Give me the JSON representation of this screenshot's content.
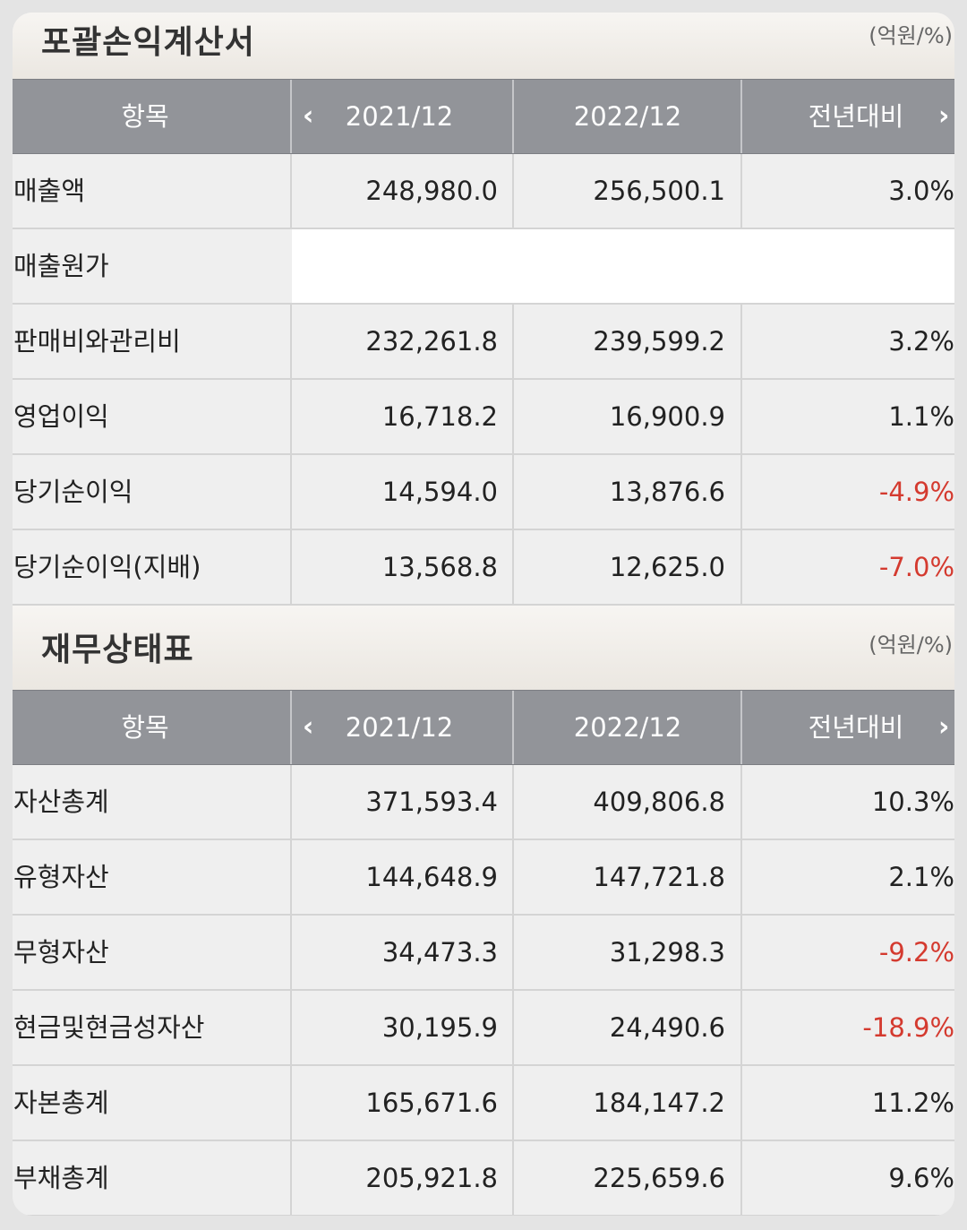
{
  "income_statement": {
    "title": "포괄손익계산서",
    "unit": "(억원/%)",
    "headers": [
      "항목",
      "2021/12",
      "2022/12",
      "전년대비"
    ],
    "rows": [
      {
        "label": "매출액",
        "v2021": "248,980.0",
        "v2022": "256,500.1",
        "yoy": "3.0%"
      },
      {
        "label": "매출원가",
        "v2021": "",
        "v2022": "",
        "yoy": ""
      },
      {
        "label": "판매비와관리비",
        "v2021": "232,261.8",
        "v2022": "239,599.2",
        "yoy": "3.2%"
      },
      {
        "label": "영업이익",
        "v2021": "16,718.2",
        "v2022": "16,900.9",
        "yoy": "1.1%"
      },
      {
        "label": "당기순이익",
        "v2021": "14,594.0",
        "v2022": "13,876.6",
        "yoy": "-4.9%"
      },
      {
        "label": "당기순이익(지배)",
        "v2021": "13,568.8",
        "v2022": "12,625.0",
        "yoy": "-7.0%"
      }
    ]
  },
  "balance_sheet": {
    "title": "재무상태표",
    "unit": "(억원/%)",
    "headers": [
      "항목",
      "2021/12",
      "2022/12",
      "전년대비"
    ],
    "rows": [
      {
        "label": "자산총계",
        "v2021": "371,593.4",
        "v2022": "409,806.8",
        "yoy": "10.3%"
      },
      {
        "label": "유형자산",
        "v2021": "144,648.9",
        "v2022": "147,721.8",
        "yoy": "2.1%"
      },
      {
        "label": "무형자산",
        "v2021": "34,473.3",
        "v2022": "31,298.3",
        "yoy": "-9.2%"
      },
      {
        "label": "현금및현금성자산",
        "v2021": "30,195.9",
        "v2022": "24,490.6",
        "yoy": "-18.9%"
      },
      {
        "label": "자본총계",
        "v2021": "165,671.6",
        "v2022": "184,147.2",
        "yoy": "11.2%"
      },
      {
        "label": "부채총계",
        "v2021": "205,921.8",
        "v2022": "225,659.6",
        "yoy": "9.6%"
      }
    ]
  },
  "icons": {
    "prev": "chevron-left-icon",
    "next": "chevron-right-icon"
  },
  "colors": {
    "negative": "#d43a2f",
    "header_bg": "#929499"
  }
}
